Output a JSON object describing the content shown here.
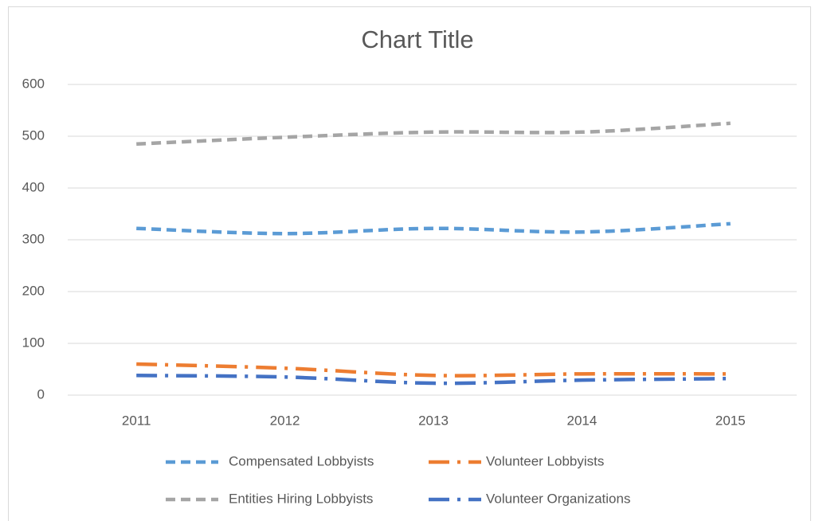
{
  "chart_data": {
    "type": "line",
    "title": "Chart Title",
    "categories": [
      "2011",
      "2012",
      "2013",
      "2014",
      "2015"
    ],
    "series": [
      {
        "name": "Compensated Lobbyists",
        "color": "#5b9bd5",
        "dash": "dash",
        "values": [
          322,
          312,
          322,
          315,
          331
        ]
      },
      {
        "name": "Volunteer Lobbyists",
        "color": "#ed7d31",
        "dash": "longDashDot",
        "values": [
          60,
          52,
          38,
          41,
          41
        ]
      },
      {
        "name": "Entities Hiring Lobbyists",
        "color": "#a5a5a5",
        "dash": "dash",
        "values": [
          485,
          498,
          508,
          508,
          525
        ]
      },
      {
        "name": "Volunteer Organizations",
        "color": "#4472c4",
        "dash": "longDashDot",
        "values": [
          38,
          35,
          23,
          29,
          32
        ]
      }
    ],
    "ylim": [
      0,
      600
    ],
    "yticks": [
      0,
      100,
      200,
      300,
      400,
      500,
      600
    ],
    "grid": true,
    "smooth": true,
    "legend": "bottom"
  }
}
